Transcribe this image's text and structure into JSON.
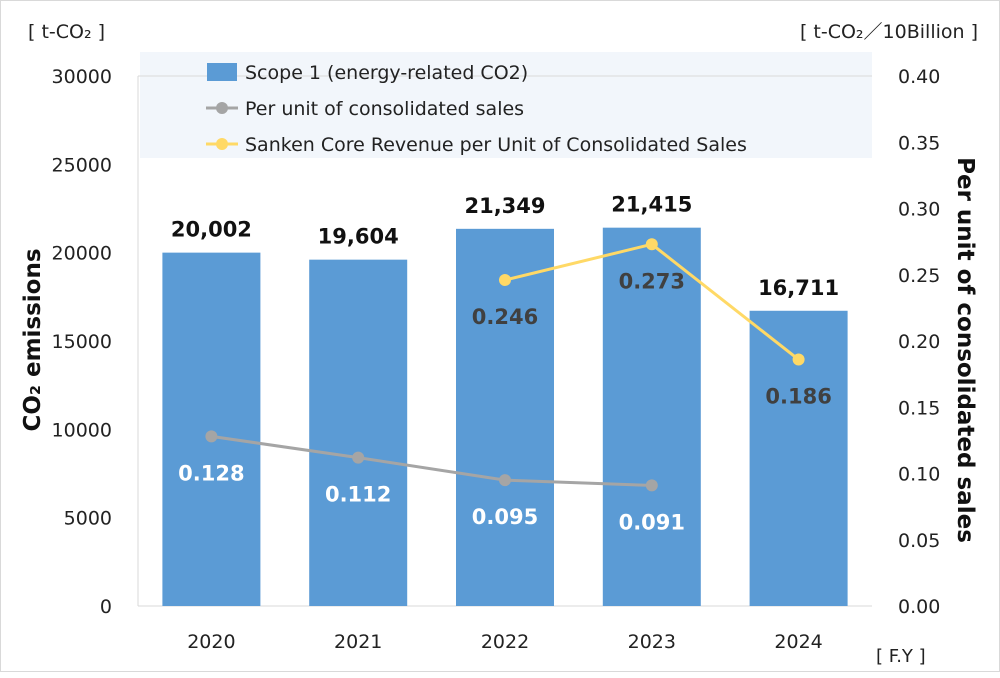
{
  "chart_data": {
    "type": "bar",
    "categories": [
      "2020",
      "2021",
      "2022",
      "2023",
      "2024"
    ],
    "xlabel_unit": "[ F.Y ]",
    "y_left": {
      "label": "CO₂ emissions",
      "unit": "[ t-CO₂ ]",
      "range": [
        0,
        30000
      ],
      "ticks": [
        "0",
        "5000",
        "10000",
        "15000",
        "20000",
        "25000",
        "30000"
      ]
    },
    "y_right": {
      "label": "Per unit of consolidated sales",
      "unit": "[ t-CO₂／10Billion ]",
      "range": [
        0,
        0.4
      ],
      "ticks": [
        "0.00",
        "0.05",
        "0.10",
        "0.15",
        "0.20",
        "0.25",
        "0.30",
        "0.35",
        "0.40"
      ]
    },
    "series": [
      {
        "name": "Scope 1 (energy-related CO2)",
        "kind": "bar",
        "axis": "left",
        "color": "#5b9bd5",
        "values": [
          20002,
          19604,
          21349,
          21415,
          16711
        ],
        "labels": [
          "20,002",
          "19,604",
          "21,349",
          "21,415",
          "16,711"
        ]
      },
      {
        "name": "Per unit of consolidated sales",
        "kind": "line",
        "axis": "right",
        "color": "#a5a5a5",
        "values": [
          0.128,
          0.112,
          0.095,
          0.091,
          null
        ],
        "labels": [
          "0.128",
          "0.112",
          "0.095",
          "0.091",
          ""
        ]
      },
      {
        "name": "Sanken Core Revenue per Unit of Consolidated Sales",
        "kind": "line",
        "axis": "right",
        "color": "#ffd966",
        "values": [
          null,
          null,
          0.246,
          0.273,
          0.186
        ],
        "labels": [
          "",
          "",
          "0.246",
          "0.273",
          "0.186"
        ]
      }
    ],
    "legend": "top",
    "grid": false
  }
}
